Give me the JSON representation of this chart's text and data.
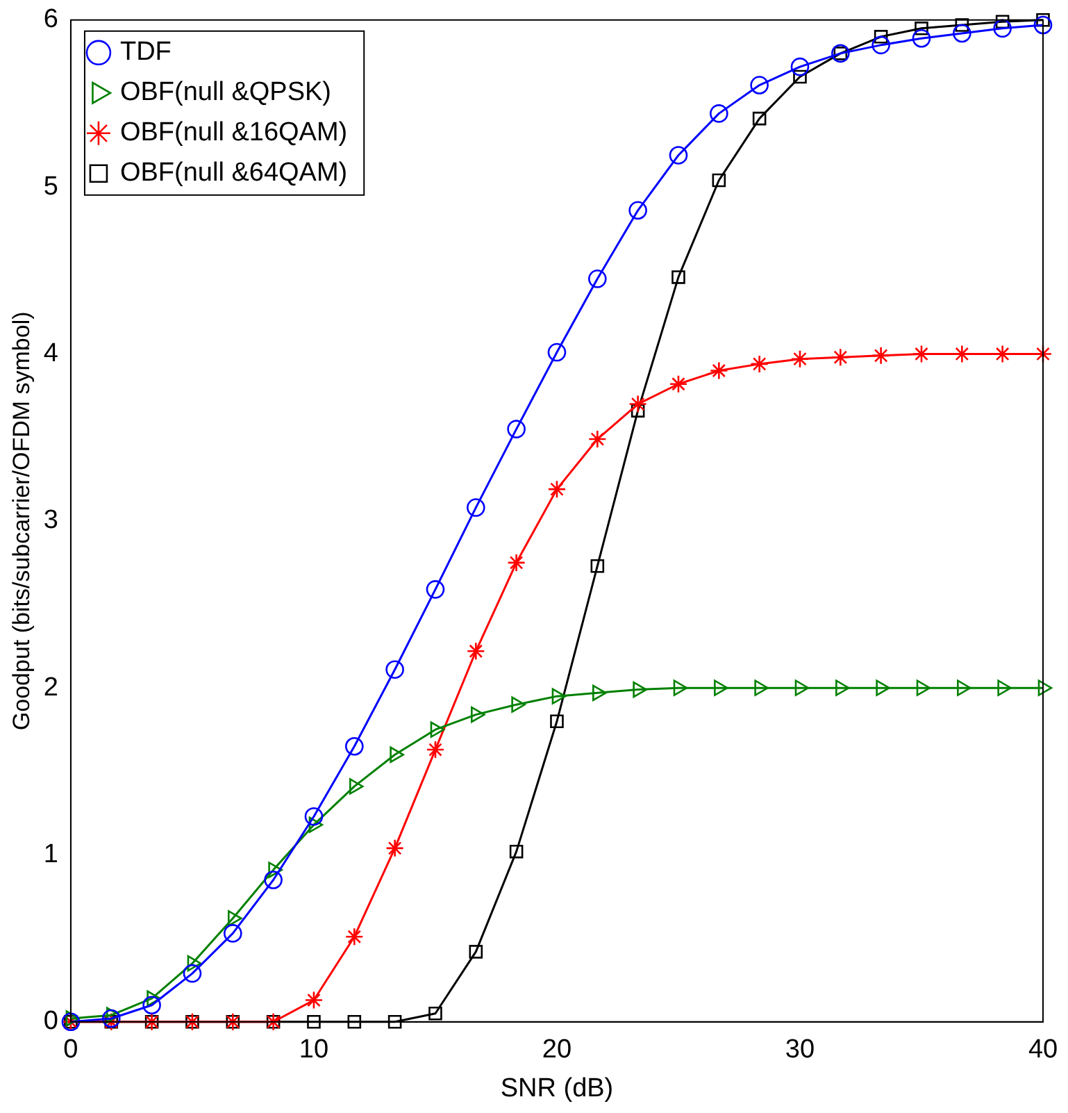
{
  "chart_data": {
    "type": "line",
    "xlabel": "SNR (dB)",
    "ylabel": "Goodput (bits/subcarrier/OFDM symbol)",
    "x": [
      0,
      1.667,
      3.333,
      5,
      6.667,
      8.333,
      10,
      11.667,
      13.333,
      15,
      16.667,
      18.333,
      20,
      21.667,
      23.333,
      25,
      26.667,
      28.333,
      30,
      31.667,
      33.333,
      35,
      36.667,
      38.333,
      40
    ],
    "series": [
      {
        "name": "TDF",
        "color": "#0000ff",
        "marker": "circle",
        "values": [
          0,
          0.02,
          0.1,
          0.29,
          0.53,
          0.85,
          1.23,
          1.65,
          2.11,
          2.59,
          3.08,
          3.55,
          4.01,
          4.45,
          4.86,
          5.19,
          5.44,
          5.61,
          5.72,
          5.8,
          5.85,
          5.89,
          5.92,
          5.95,
          5.97
        ]
      },
      {
        "name": "OBF(null &QPSK)",
        "color": "#008000",
        "marker": "triangle",
        "values": [
          0.02,
          0.04,
          0.14,
          0.35,
          0.62,
          0.91,
          1.18,
          1.41,
          1.6,
          1.75,
          1.84,
          1.9,
          1.95,
          1.97,
          1.99,
          2,
          2,
          2,
          2,
          2,
          2,
          2,
          2,
          2,
          2
        ]
      },
      {
        "name": "OBF(null &16QAM)",
        "color": "#ff0000",
        "marker": "cross",
        "values": [
          0,
          0,
          0,
          0,
          0,
          0,
          0.13,
          0.51,
          1.04,
          1.63,
          2.22,
          2.75,
          3.19,
          3.49,
          3.7,
          3.82,
          3.9,
          3.94,
          3.97,
          3.98,
          3.99,
          4,
          4,
          4,
          4
        ]
      },
      {
        "name": "OBF(null &64QAM)",
        "color": "#000000",
        "marker": "square",
        "values": [
          0,
          0,
          0,
          0,
          0,
          0,
          0,
          0,
          0,
          0.05,
          0.42,
          1.02,
          1.8,
          2.73,
          3.66,
          4.46,
          5.04,
          5.41,
          5.66,
          5.8,
          5.9,
          5.95,
          5.97,
          5.99,
          6
        ]
      }
    ],
    "xlim": [
      0,
      40
    ],
    "xticks": [
      0,
      10,
      20,
      30,
      40
    ],
    "ylim": [
      0,
      6
    ],
    "yticks": [
      0,
      1,
      2,
      3,
      4,
      5,
      6
    ],
    "grid": false,
    "legend": "top left",
    "line_style": "solid"
  }
}
